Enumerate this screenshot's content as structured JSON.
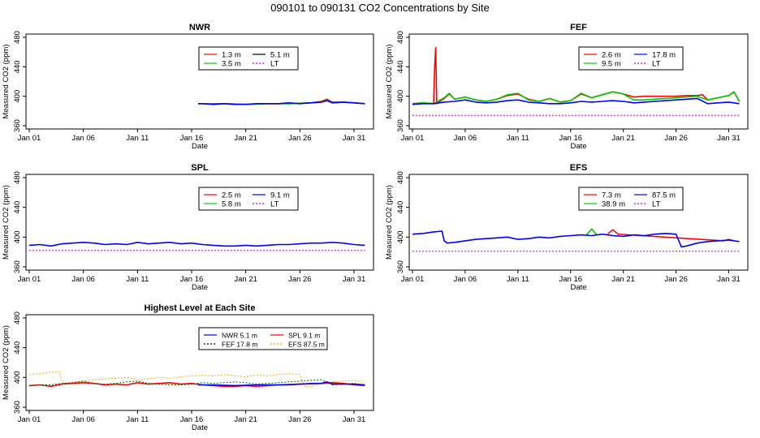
{
  "figure": {
    "title": "090101  to  090131 CO2 Concentrations by Site"
  },
  "colors": {
    "red": "#ff0000",
    "green": "#00cc00",
    "blue": "#0000ff",
    "magenta": "#cc00cc",
    "black": "#000000",
    "orange": "#ffaa00",
    "darkgreen": "#006400"
  },
  "chart_data": [
    {
      "id": "NWR",
      "type": "line",
      "title": "NWR",
      "xlabel": "Date",
      "ylabel": "Measured CO2 (ppm)",
      "xlim": [
        0,
        31.5
      ],
      "ylim": [
        360,
        480
      ],
      "xticks": [
        0,
        5,
        10,
        15,
        20,
        25,
        30
      ],
      "xtick_labels": [
        "Jan 01",
        "Jan 06",
        "Jan 11",
        "Jan 16",
        "Jan 21",
        "Jan 26",
        "Jan 31"
      ],
      "yticks": [
        360,
        400,
        440,
        480
      ],
      "ytick_labels": [
        "360",
        "400",
        "440",
        "480"
      ],
      "legend": [
        {
          "label": "1.3 m",
          "color": "red"
        },
        {
          "label": "5.1 m",
          "color": "black"
        },
        {
          "label": "3.5 m",
          "color": "green"
        },
        {
          "label": "LT",
          "color": "magenta",
          "dash": true
        }
      ],
      "series": [
        {
          "name": "1.3 m",
          "color": "red",
          "x": [
            15.6,
            18,
            20,
            22,
            24,
            26,
            27,
            27.5,
            28,
            29,
            30,
            31
          ],
          "y": [
            390,
            390,
            389,
            390,
            390,
            391,
            393,
            396,
            392,
            392,
            391,
            390
          ]
        },
        {
          "name": "3.5 m",
          "color": "green",
          "x": [
            15.6,
            18,
            20,
            22,
            24,
            26,
            27,
            27.5,
            28,
            29,
            30,
            31
          ],
          "y": [
            390,
            390,
            389,
            390,
            390,
            391,
            392,
            395,
            391,
            392,
            391,
            390
          ]
        },
        {
          "name": "5.1 m",
          "color": "blue",
          "x": [
            15.6,
            16,
            17,
            18,
            19,
            20,
            21,
            22,
            23,
            24,
            25,
            26,
            27,
            27.5,
            28,
            29,
            30,
            31
          ],
          "y": [
            390,
            390,
            389,
            390,
            389,
            389,
            390,
            390,
            390,
            391,
            390,
            391,
            392,
            394,
            391,
            392,
            391,
            390
          ]
        }
      ]
    },
    {
      "id": "FEF",
      "type": "line",
      "title": "FEF",
      "xlabel": "Date",
      "ylabel": "Measured CO2 (ppm)",
      "xlim": [
        0,
        31.5
      ],
      "ylim": [
        360,
        480
      ],
      "xticks": [
        0,
        5,
        10,
        15,
        20,
        25,
        30
      ],
      "xtick_labels": [
        "Jan 01",
        "Jan 06",
        "Jan 11",
        "Jan 16",
        "Jan 21",
        "Jan 26",
        "Jan 31"
      ],
      "yticks": [
        360,
        400,
        440,
        480
      ],
      "ytick_labels": [
        "360",
        "400",
        "440",
        "480"
      ],
      "legend": [
        {
          "label": "2.6 m",
          "color": "red"
        },
        {
          "label": "17.8 m",
          "color": "blue"
        },
        {
          "label": "9.5 m",
          "color": "green"
        },
        {
          "label": "LT",
          "color": "magenta",
          "dash": true
        }
      ],
      "series": [
        {
          "name": "LT",
          "color": "magenta",
          "dash": true,
          "x": [
            0,
            5,
            10,
            15,
            20,
            25,
            31
          ],
          "y": [
            374,
            374,
            374,
            374,
            374,
            374,
            374
          ]
        },
        {
          "name": "2.6 m",
          "color": "red",
          "x": [
            0,
            1,
            2,
            2.1,
            2.2,
            2.3,
            3,
            3.5,
            4,
            5,
            6,
            7,
            8,
            9,
            10,
            11,
            12,
            13,
            14,
            15,
            16,
            17,
            18,
            19,
            20,
            21,
            22,
            23,
            24,
            25,
            26,
            27,
            27.5,
            28,
            29,
            30,
            30.5,
            31
          ],
          "y": [
            390,
            391,
            390,
            440,
            466,
            390,
            397,
            403,
            396,
            399,
            395,
            393,
            396,
            401,
            403,
            396,
            393,
            397,
            392,
            394,
            403,
            398,
            402,
            406,
            403,
            399,
            400,
            400,
            400,
            400,
            401,
            401,
            402,
            395,
            398,
            401,
            406,
            393
          ]
        },
        {
          "name": "9.5 m",
          "color": "green",
          "x": [
            0,
            1,
            2,
            3,
            3.5,
            4,
            5,
            6,
            7,
            8,
            9,
            10,
            11,
            12,
            13,
            14,
            15,
            16,
            17,
            18,
            19,
            20,
            21,
            22,
            23,
            24,
            25,
            26,
            27,
            28,
            29,
            30,
            30.5,
            31
          ],
          "y": [
            390,
            391,
            390,
            398,
            404,
            396,
            399,
            395,
            393,
            396,
            402,
            404,
            395,
            393,
            397,
            392,
            394,
            404,
            398,
            402,
            406,
            403,
            395,
            395,
            396,
            397,
            398,
            399,
            400,
            395,
            398,
            401,
            406,
            393
          ]
        },
        {
          "name": "17.8 m",
          "color": "blue",
          "x": [
            0,
            1,
            2,
            3,
            4,
            5,
            6,
            7,
            8,
            9,
            10,
            11,
            12,
            13,
            14,
            15,
            16,
            17,
            18,
            19,
            20,
            21,
            22,
            23,
            24,
            25,
            26,
            27,
            28,
            29,
            30,
            31
          ],
          "y": [
            389,
            390,
            390,
            392,
            393,
            395,
            392,
            391,
            392,
            394,
            395,
            392,
            391,
            390,
            390,
            391,
            393,
            392,
            393,
            394,
            393,
            391,
            392,
            393,
            394,
            395,
            396,
            397,
            390,
            391,
            392,
            390
          ]
        }
      ]
    },
    {
      "id": "SPL",
      "type": "line",
      "title": "SPL",
      "xlabel": "Date",
      "ylabel": "Measured CO2 (ppm)",
      "xlim": [
        0,
        31.5
      ],
      "ylim": [
        360,
        480
      ],
      "xticks": [
        0,
        5,
        10,
        15,
        20,
        25,
        30
      ],
      "xtick_labels": [
        "Jan 01",
        "Jan 06",
        "Jan 11",
        "Jan 16",
        "Jan 21",
        "Jan 26",
        "Jan 31"
      ],
      "yticks": [
        360,
        400,
        440,
        480
      ],
      "ytick_labels": [
        "360",
        "400",
        "440",
        "480"
      ],
      "legend": [
        {
          "label": "2.5 m",
          "color": "red"
        },
        {
          "label": "9.1 m",
          "color": "blue"
        },
        {
          "label": "5.8 m",
          "color": "green"
        },
        {
          "label": "LT",
          "color": "magenta",
          "dash": true
        }
      ],
      "series": [
        {
          "name": "LT",
          "color": "magenta",
          "dash": true,
          "x": [
            0,
            5,
            10,
            15,
            20,
            25,
            31
          ],
          "y": [
            382,
            382,
            382,
            382,
            382,
            382,
            382
          ]
        },
        {
          "name": "9.1 m",
          "color": "blue",
          "x": [
            0,
            1,
            2,
            3,
            4,
            5,
            6,
            7,
            8,
            9,
            10,
            11,
            12,
            13,
            14,
            15,
            16,
            17,
            18,
            19,
            20,
            21,
            22,
            23,
            24,
            25,
            26,
            27,
            28,
            29,
            30,
            31
          ],
          "y": [
            389,
            390,
            388,
            391,
            392,
            393,
            392,
            390,
            391,
            390,
            393,
            391,
            392,
            393,
            391,
            392,
            390,
            389,
            388,
            388,
            389,
            388,
            389,
            390,
            390,
            391,
            392,
            392,
            393,
            392,
            390,
            389
          ]
        }
      ]
    },
    {
      "id": "EFS",
      "type": "line",
      "title": "EFS",
      "xlabel": "Date",
      "ylabel": "Measured CO2 (ppm)",
      "xlim": [
        0,
        31.5
      ],
      "ylim": [
        360,
        480
      ],
      "xticks": [
        0,
        5,
        10,
        15,
        20,
        25,
        30
      ],
      "xtick_labels": [
        "Jan 01",
        "Jan 06",
        "Jan 11",
        "Jan 16",
        "Jan 21",
        "Jan 26",
        "Jan 31"
      ],
      "yticks": [
        360,
        400,
        440,
        480
      ],
      "ytick_labels": [
        "360",
        "400",
        "440",
        "480"
      ],
      "legend": [
        {
          "label": "7.3 m",
          "color": "red"
        },
        {
          "label": "87.5 m",
          "color": "blue"
        },
        {
          "label": "38.9 m",
          "color": "green"
        },
        {
          "label": "LT",
          "color": "magenta",
          "dash": true
        }
      ],
      "series": [
        {
          "name": "LT",
          "color": "magenta",
          "dash": true,
          "x": [
            0,
            5,
            10,
            15,
            20,
            25,
            31
          ],
          "y": [
            381,
            381,
            381,
            381,
            381,
            381,
            381
          ]
        },
        {
          "name": "38.9 m",
          "color": "green",
          "x": [
            16.5,
            17,
            17.5
          ],
          "y": [
            403,
            411,
            403
          ]
        },
        {
          "name": "7.3 m",
          "color": "red",
          "x": [
            18.5,
            19,
            19.5,
            29.5,
            30,
            30.5
          ],
          "y": [
            404,
            410,
            404,
            395,
            397,
            395
          ]
        },
        {
          "name": "87.5 m",
          "color": "blue",
          "x": [
            0,
            1,
            2,
            2.8,
            3,
            3.3,
            4,
            5,
            6,
            7,
            8,
            9,
            10,
            11,
            12,
            13,
            14,
            15,
            16,
            17,
            18,
            19,
            20,
            21,
            22,
            23,
            24,
            25,
            25.5,
            26,
            27,
            28,
            29,
            30,
            31
          ],
          "y": [
            404,
            405,
            407,
            408,
            395,
            392,
            393,
            395,
            397,
            398,
            399,
            400,
            397,
            398,
            400,
            399,
            401,
            402,
            403,
            402,
            404,
            402,
            401,
            403,
            402,
            404,
            405,
            404,
            387,
            388,
            392,
            394,
            395,
            396,
            394
          ]
        }
      ]
    },
    {
      "id": "Highest",
      "type": "line",
      "title": "Highest Level at Each Site",
      "xlabel": "Date",
      "ylabel": "Measured CO2 (ppm)",
      "xlim": [
        0,
        31.5
      ],
      "ylim": [
        360,
        480
      ],
      "xticks": [
        0,
        5,
        10,
        15,
        20,
        25,
        30
      ],
      "xtick_labels": [
        "Jan 01",
        "Jan 06",
        "Jan 11",
        "Jan 16",
        "Jan 21",
        "Jan 26",
        "Jan 31"
      ],
      "yticks": [
        360,
        400,
        440,
        480
      ],
      "ytick_labels": [
        "360",
        "400",
        "440",
        "480"
      ],
      "legend": [
        {
          "label": "NWR  5.1 m",
          "color": "blue"
        },
        {
          "label": "SPL  9.1 m",
          "color": "red"
        },
        {
          "label": "FEF  17.8 m",
          "color": "black",
          "dash": true
        },
        {
          "label": "EFS  87.5 m",
          "color": "orange",
          "dash": true
        }
      ],
      "series": [
        {
          "name": "EFS  87.5 m",
          "color": "orange",
          "dash": true,
          "x": [
            0,
            1,
            2,
            2.8,
            3,
            3.3,
            4,
            5,
            6,
            7,
            8,
            9,
            10,
            11,
            12,
            13,
            14,
            15,
            16,
            17,
            18,
            19,
            20,
            21,
            22,
            23,
            24,
            25,
            25.5,
            26,
            27,
            28,
            29,
            30,
            31
          ],
          "y": [
            404,
            405,
            407,
            408,
            395,
            392,
            393,
            395,
            397,
            398,
            399,
            400,
            397,
            398,
            400,
            399,
            401,
            402,
            403,
            402,
            404,
            402,
            401,
            403,
            402,
            404,
            405,
            404,
            387,
            388,
            392,
            394,
            395,
            396,
            394
          ]
        },
        {
          "name": "SPL  9.1 m",
          "color": "red",
          "x": [
            0,
            1,
            2,
            3,
            4,
            5,
            6,
            7,
            8,
            9,
            10,
            11,
            12,
            13,
            14,
            15,
            16,
            17,
            18,
            19,
            20,
            21,
            22,
            23,
            24,
            25,
            26,
            27,
            28,
            29,
            30,
            31
          ],
          "y": [
            389,
            390,
            388,
            391,
            392,
            393,
            392,
            390,
            391,
            390,
            393,
            391,
            392,
            393,
            391,
            392,
            390,
            389,
            388,
            388,
            389,
            388,
            389,
            390,
            390,
            391,
            392,
            392,
            393,
            392,
            390,
            389
          ]
        },
        {
          "name": "FEF  17.8 m",
          "color": "darkgreen",
          "dash": true,
          "x": [
            0,
            1,
            2,
            3,
            4,
            5,
            6,
            7,
            8,
            9,
            10,
            11,
            12,
            13,
            14,
            15,
            16,
            17,
            18,
            19,
            20,
            21,
            22,
            23,
            24,
            25,
            26,
            27,
            28,
            29,
            30,
            31
          ],
          "y": [
            389,
            390,
            390,
            392,
            393,
            395,
            392,
            391,
            392,
            394,
            395,
            392,
            391,
            390,
            390,
            391,
            393,
            392,
            393,
            394,
            393,
            391,
            392,
            393,
            394,
            395,
            396,
            397,
            390,
            391,
            392,
            390
          ]
        },
        {
          "name": "NWR  5.1 m",
          "color": "blue",
          "x": [
            15.6,
            17,
            19,
            21,
            23,
            25,
            27,
            27.5,
            28,
            30,
            31
          ],
          "y": [
            390,
            390,
            389,
            390,
            390,
            391,
            392,
            394,
            391,
            391,
            390
          ]
        }
      ]
    }
  ]
}
